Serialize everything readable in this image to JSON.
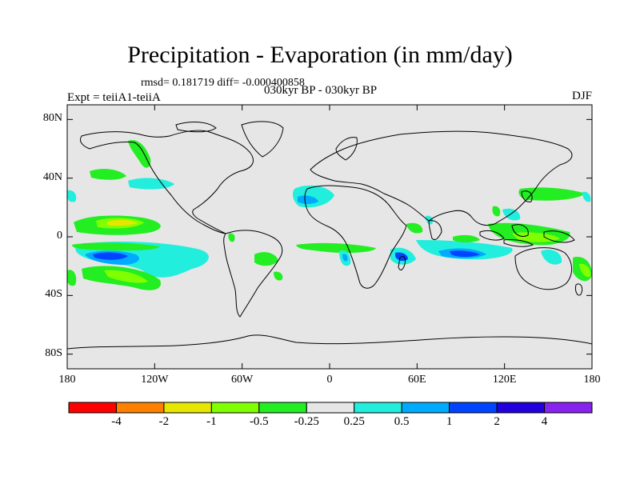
{
  "title": "Precipitation - Evaporation (in mm/day)",
  "subtitle": "rmsd= 0.181719  diff= -0.000400858",
  "left_label": "Expt = teiiA1-teiiA",
  "center_label": "030kyr BP - 030kyr BP",
  "right_label": "DJF",
  "lat_ticks": [
    {
      "value": 80,
      "label": "80N"
    },
    {
      "value": 40,
      "label": "40N"
    },
    {
      "value": 0,
      "label": "0"
    },
    {
      "value": -40,
      "label": "40S"
    },
    {
      "value": -80,
      "label": "80S"
    }
  ],
  "lon_ticks": [
    {
      "value": -180,
      "label": "180"
    },
    {
      "value": -120,
      "label": "120W"
    },
    {
      "value": -60,
      "label": "60W"
    },
    {
      "value": 0,
      "label": "0"
    },
    {
      "value": 60,
      "label": "60E"
    },
    {
      "value": 120,
      "label": "120E"
    },
    {
      "value": 180,
      "label": "180"
    }
  ],
  "colorbar": {
    "colors": [
      "#ff0000",
      "#ff8000",
      "#e6e600",
      "#80ff00",
      "#22ee22",
      "#e6e6e6",
      "#22eedd",
      "#00aaff",
      "#0044ff",
      "#2200dd",
      "#8822ee"
    ],
    "labels": [
      "-4",
      "-2",
      "-1",
      "-0.5",
      "-0.25",
      "0.25",
      "0.5",
      "1",
      "2",
      "4"
    ]
  },
  "map_background": "#e6e6e6"
}
